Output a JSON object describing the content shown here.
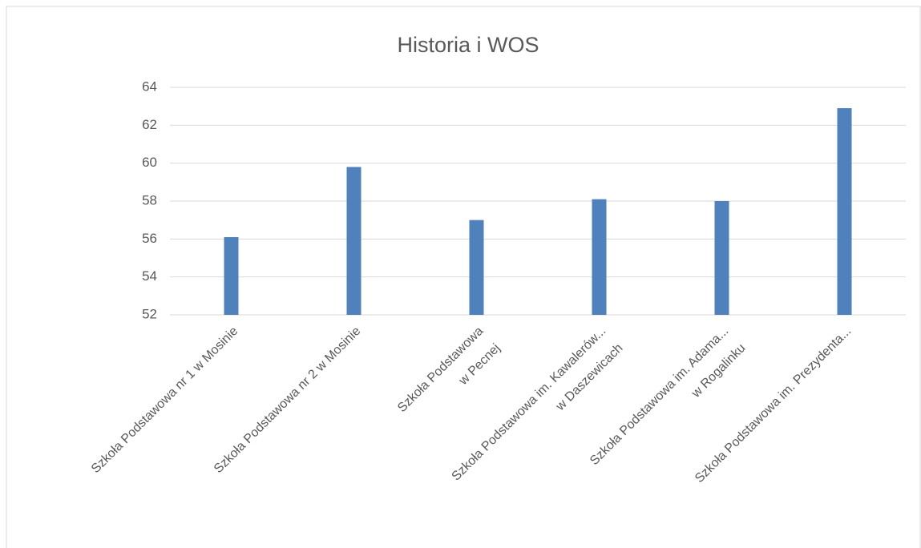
{
  "chart_data": {
    "type": "bar",
    "title": "Historia i WOS",
    "categories": [
      [
        "Szkoła Podstawowa nr 1 w Mosinie"
      ],
      [
        "Szkoła Podstawowa nr 2 w Mosinie"
      ],
      [
        "Szkoła Podstawowa",
        "w Pecnej"
      ],
      [
        "Szkoła Podstawowa im. Kawalerów...",
        "w Daszewicach"
      ],
      [
        "Szkoła Podstawowa im. Adama...",
        "w Rogalinku"
      ],
      [
        "Szkoła Podstawowa im. Prezydenta..."
      ]
    ],
    "values": [
      56.1,
      59.8,
      57.0,
      58.1,
      58.0,
      62.9
    ],
    "color": "#4f81bd",
    "ylim": [
      52,
      64
    ],
    "yticks": [
      52,
      54,
      56,
      58,
      60,
      62,
      64
    ],
    "grid": true
  }
}
